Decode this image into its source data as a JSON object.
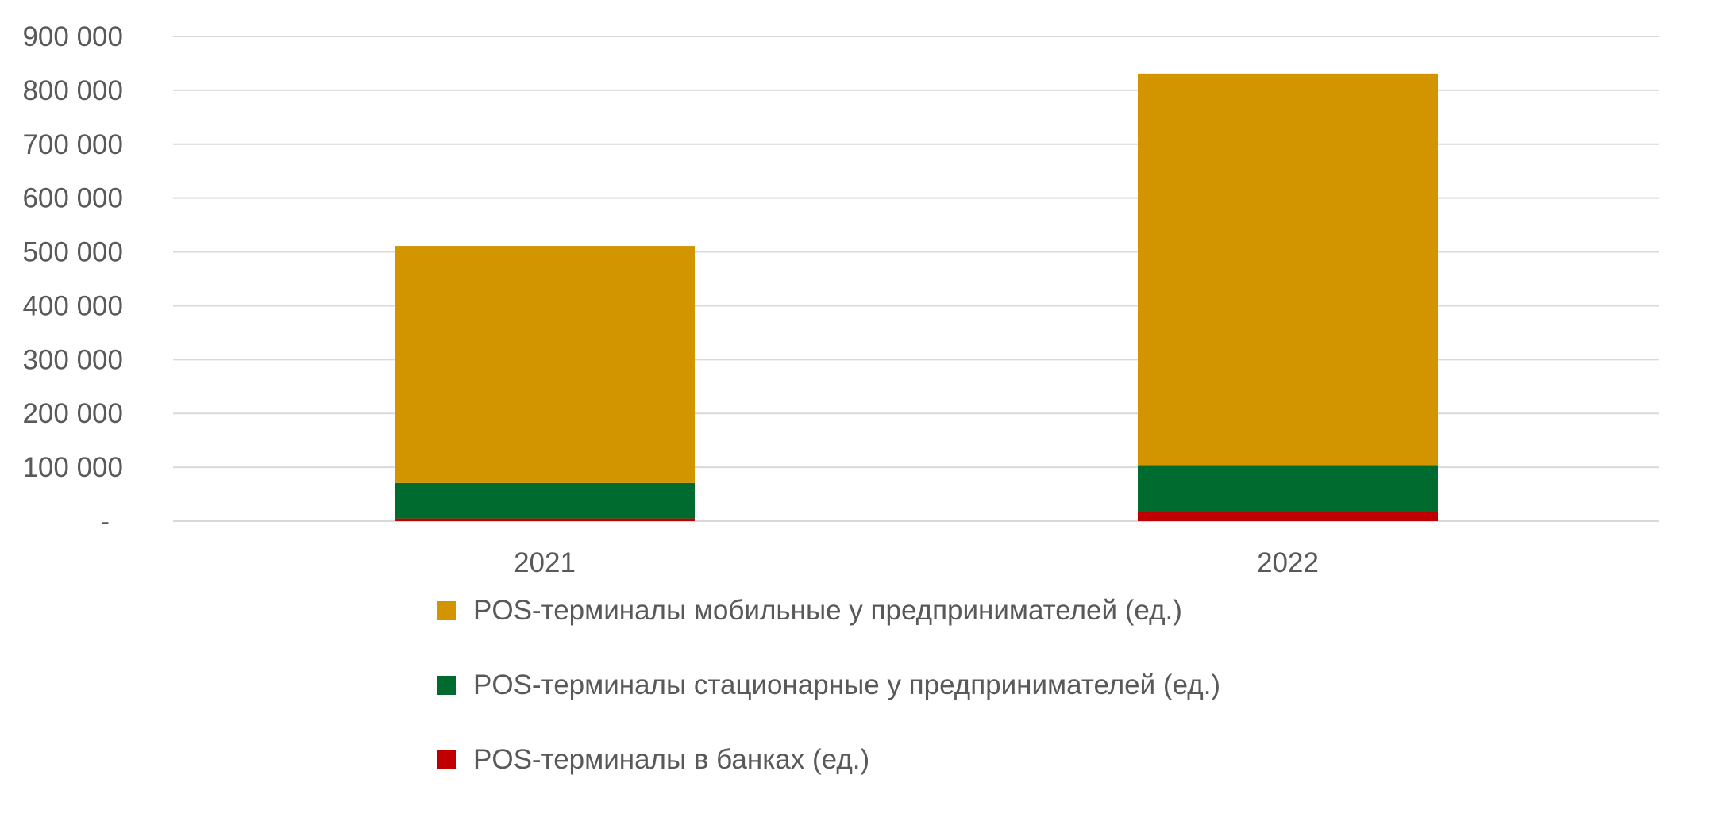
{
  "chart_data": {
    "type": "bar",
    "stacked": true,
    "title": "",
    "xlabel": "",
    "ylabel": "",
    "categories": [
      "2021",
      "2022"
    ],
    "ylim": [
      0,
      900000
    ],
    "yticks": [
      0,
      100000,
      200000,
      300000,
      400000,
      500000,
      600000,
      700000,
      800000,
      900000
    ],
    "ytick_labels": [
      "-",
      "100 000",
      "200 000",
      "300 000",
      "400 000",
      "500 000",
      "600 000",
      "700 000",
      "800 000",
      "900 000"
    ],
    "grid": true,
    "legend_position": "bottom",
    "series": [
      {
        "name": "POS-терминалы в банках (ед.)",
        "color": "#c00000",
        "values": [
          5000,
          17000
        ]
      },
      {
        "name": "POS-терминалы стационарные у предпринимателей (ед.)",
        "color": "#006b2e",
        "values": [
          66000,
          87000
        ]
      },
      {
        "name": "POS-терминалы мобильные у предпринимателей (ед.)",
        "color": "#d29500",
        "values": [
          440000,
          727000
        ]
      }
    ],
    "legend_order": [
      2,
      1,
      0
    ]
  }
}
